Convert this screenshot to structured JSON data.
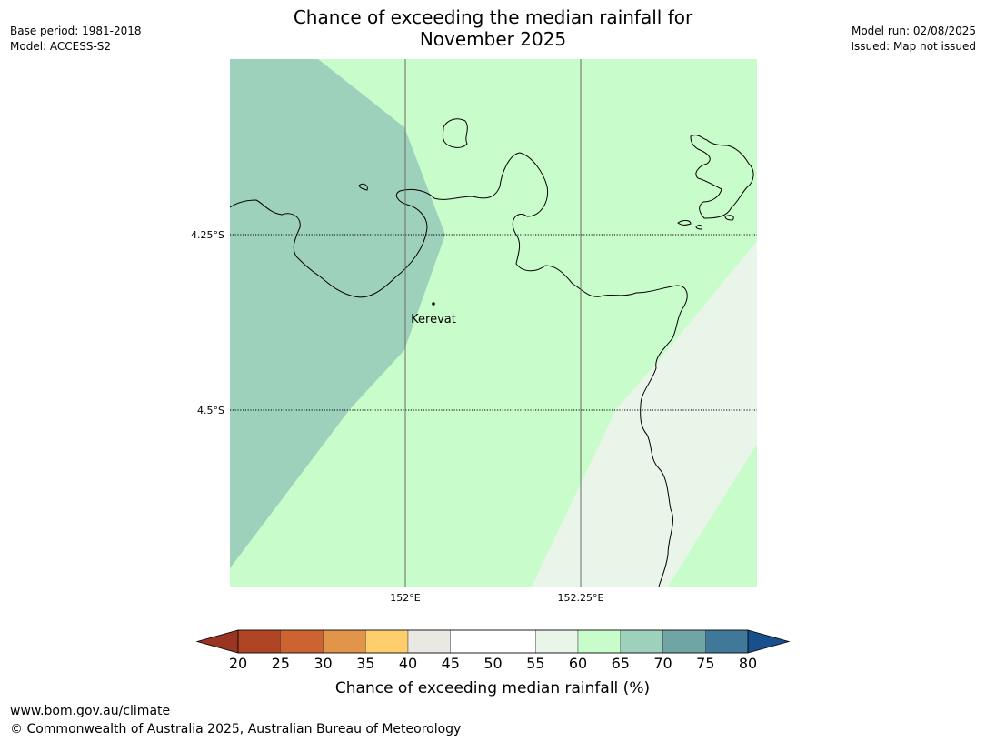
{
  "header": {
    "title_line1": "Chance of exceeding the median rainfall for",
    "title_line2": "November 2025",
    "base_period": "Base period: 1981-2018",
    "model": "Model: ACCESS-S2",
    "model_run": "Model run: 02/08/2025",
    "issued": "Issued: Map not issued"
  },
  "map": {
    "lat_labels": [
      "4.25°S",
      "4.5°S"
    ],
    "lon_labels": [
      "152°E",
      "152.25°E"
    ],
    "place": "Kerevat",
    "category_colors": {
      "55-60": "#e9f5e9",
      "60-65": "#c8fcca",
      "65-70": "#9ed1bb"
    }
  },
  "colorbar": {
    "title": "Chance of exceeding median rainfall (%)",
    "ticks": [
      "20",
      "25",
      "30",
      "35",
      "40",
      "45",
      "50",
      "55",
      "60",
      "65",
      "70",
      "75",
      "80"
    ],
    "under_color": "#9a3522",
    "over_color": "#17508d",
    "colors": [
      "#b04525",
      "#cc6331",
      "#e2954a",
      "#fecd6c",
      "#e9e8e2",
      "#ffffff",
      "#ffffff",
      "#e9f5e9",
      "#c8fcca",
      "#9ed1bb",
      "#6fa5a5",
      "#3f7898"
    ]
  },
  "footer": {
    "url": "www.bom.gov.au/climate",
    "copyright": "© Commonwealth of Australia 2025, Australian Bureau of Meteorology"
  }
}
